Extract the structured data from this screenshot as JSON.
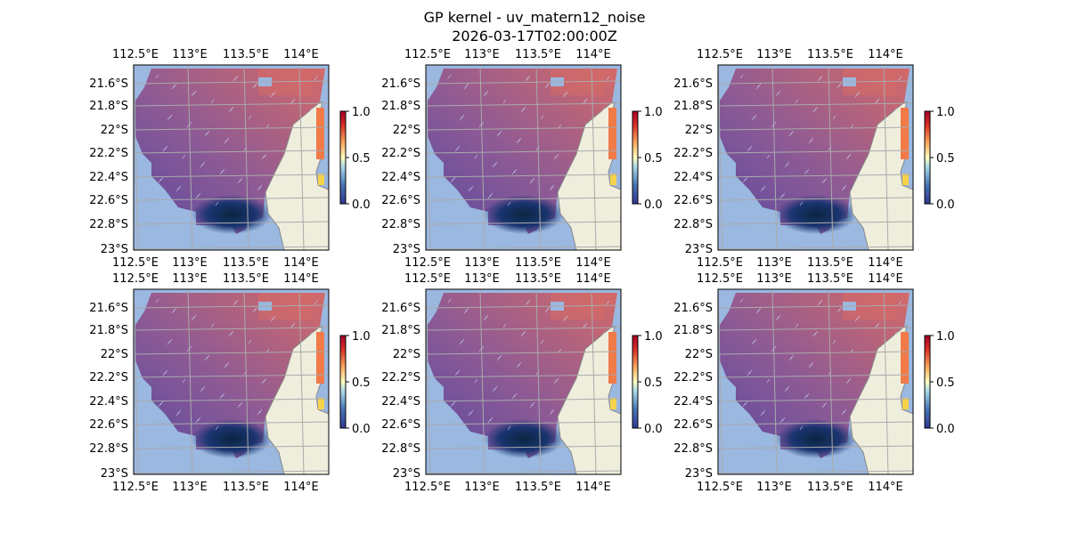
{
  "figure": {
    "title": "GP kernel - uv_matern12_noise",
    "subtitle": "2026-03-17T02:00:00Z"
  },
  "chart_data": {
    "type": "heatmap",
    "panel_count": 6,
    "x_tick_labels": [
      "112.5°E",
      "113°E",
      "113.5°E",
      "114°E"
    ],
    "y_tick_labels": [
      "21.6°S",
      "21.8°S",
      "22°S",
      "22.2°S",
      "22.4°S",
      "22.6°S",
      "22.8°S",
      "23°S"
    ],
    "colorbar": {
      "ticks": [
        "0.0",
        "0.5",
        "1.0"
      ],
      "range": [
        0,
        1
      ],
      "colormap": "RdYlBu_r"
    },
    "colors": {
      "ocean": "#9ab8e0",
      "land": "#efeedd",
      "grid": "#aaaaaa"
    }
  }
}
